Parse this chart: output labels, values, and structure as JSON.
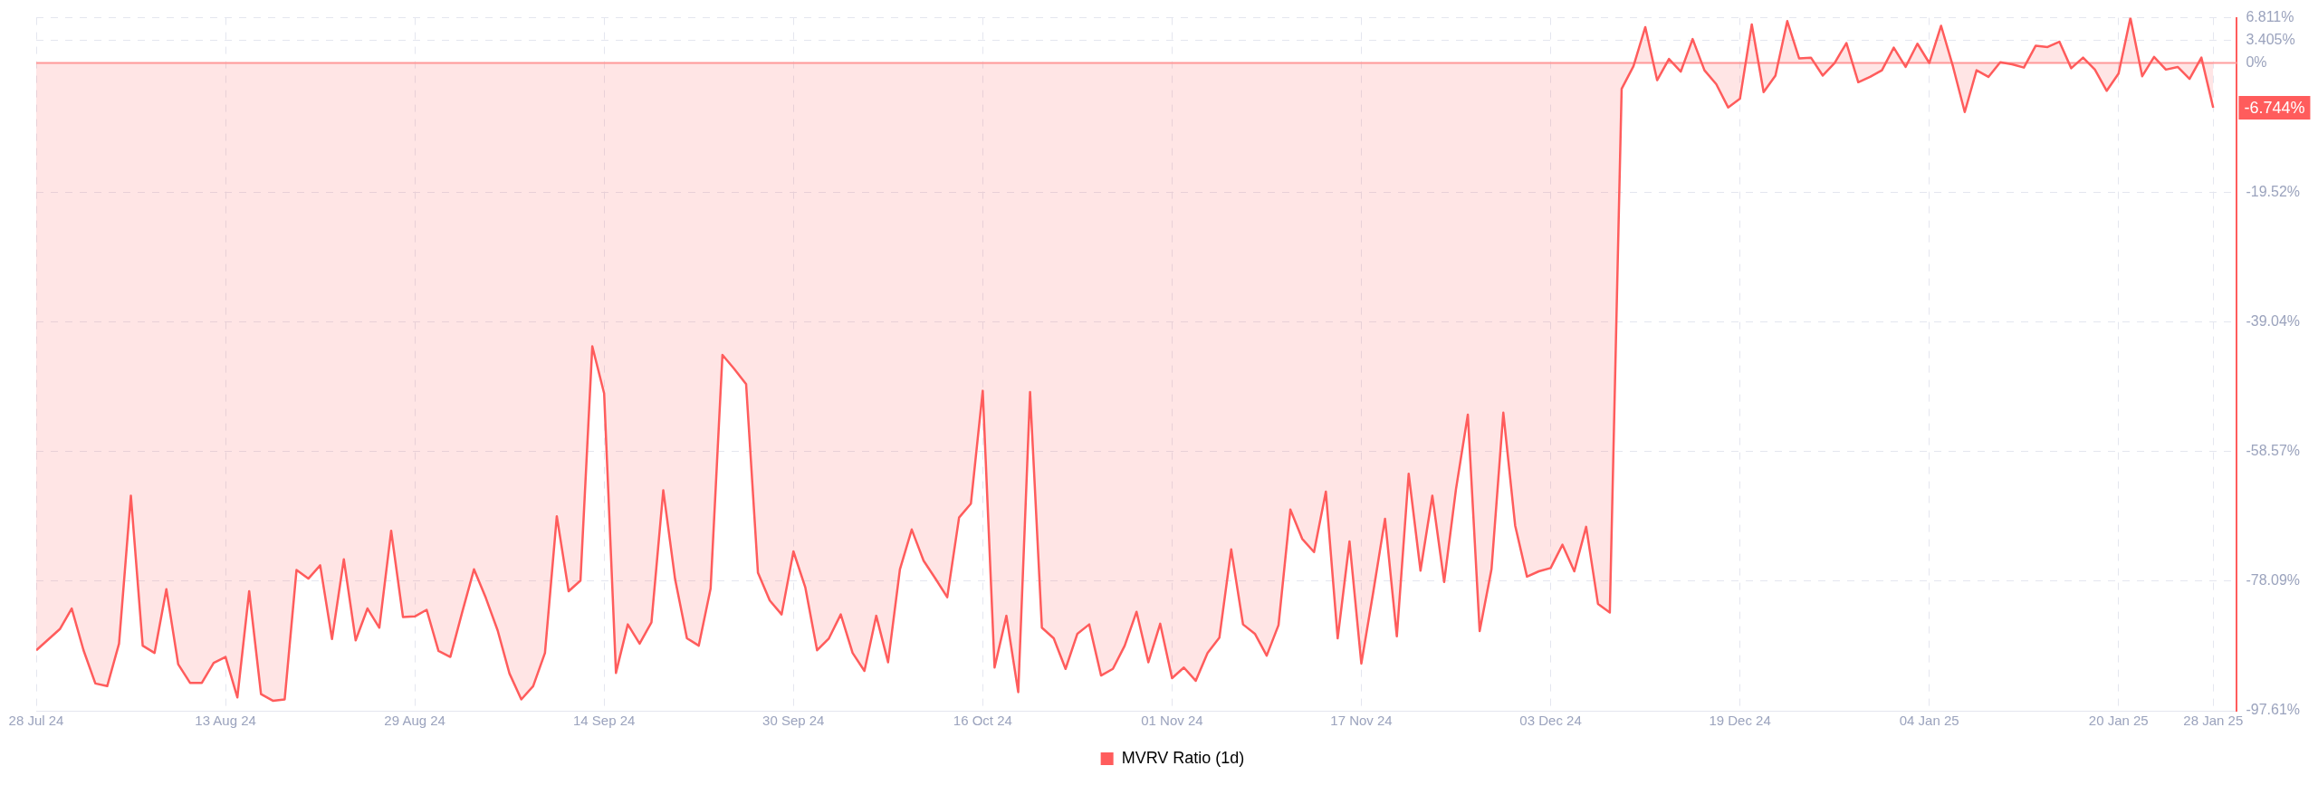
{
  "chart_data": {
    "type": "area",
    "legend": "bottom",
    "grid": true,
    "x": [
      "2024-07-28",
      "2024-07-29",
      "2024-07-30",
      "2024-07-31",
      "2024-08-01",
      "2024-08-02",
      "2024-08-03",
      "2024-08-04",
      "2024-08-05",
      "2024-08-06",
      "2024-08-07",
      "2024-08-08",
      "2024-08-09",
      "2024-08-10",
      "2024-08-11",
      "2024-08-12",
      "2024-08-13",
      "2024-08-14",
      "2024-08-15",
      "2024-08-16",
      "2024-08-17",
      "2024-08-18",
      "2024-08-19",
      "2024-08-20",
      "2024-08-21",
      "2024-08-22",
      "2024-08-23",
      "2024-08-24",
      "2024-08-25",
      "2024-08-26",
      "2024-08-27",
      "2024-08-28",
      "2024-08-29",
      "2024-08-30",
      "2024-08-31",
      "2024-09-01",
      "2024-09-02",
      "2024-09-03",
      "2024-09-04",
      "2024-09-05",
      "2024-09-06",
      "2024-09-07",
      "2024-09-08",
      "2024-09-09",
      "2024-09-10",
      "2024-09-11",
      "2024-09-12",
      "2024-09-13",
      "2024-09-14",
      "2024-09-15",
      "2024-09-16",
      "2024-09-17",
      "2024-09-18",
      "2024-09-19",
      "2024-09-20",
      "2024-09-21",
      "2024-09-22",
      "2024-09-23",
      "2024-09-24",
      "2024-09-25",
      "2024-09-26",
      "2024-09-27",
      "2024-09-28",
      "2024-09-29",
      "2024-09-30",
      "2024-10-01",
      "2024-10-02",
      "2024-10-03",
      "2024-10-04",
      "2024-10-05",
      "2024-10-06",
      "2024-10-07",
      "2024-10-08",
      "2024-10-09",
      "2024-10-10",
      "2024-10-11",
      "2024-10-12",
      "2024-10-13",
      "2024-10-14",
      "2024-10-15",
      "2024-10-16",
      "2024-10-17",
      "2024-10-18",
      "2024-10-19",
      "2024-10-20",
      "2024-10-21",
      "2024-10-22",
      "2024-10-23",
      "2024-10-24",
      "2024-10-25",
      "2024-10-26",
      "2024-10-27",
      "2024-10-28",
      "2024-10-29",
      "2024-10-30",
      "2024-10-31",
      "2024-11-01",
      "2024-11-02",
      "2024-11-03",
      "2024-11-04",
      "2024-11-05",
      "2024-11-06",
      "2024-11-07",
      "2024-11-08",
      "2024-11-09",
      "2024-11-10",
      "2024-11-11",
      "2024-11-12",
      "2024-11-13",
      "2024-11-14",
      "2024-11-15",
      "2024-11-16",
      "2024-11-17",
      "2024-11-18",
      "2024-11-19",
      "2024-11-20",
      "2024-11-21",
      "2024-11-22",
      "2024-11-23",
      "2024-11-24",
      "2024-11-25",
      "2024-11-26",
      "2024-11-27",
      "2024-11-28",
      "2024-11-29",
      "2024-11-30",
      "2024-12-01",
      "2024-12-02",
      "2024-12-03",
      "2024-12-04",
      "2024-12-05",
      "2024-12-06",
      "2024-12-07",
      "2024-12-08",
      "2024-12-09",
      "2024-12-10",
      "2024-12-11",
      "2024-12-12",
      "2024-12-13",
      "2024-12-14",
      "2024-12-15",
      "2024-12-16",
      "2024-12-17",
      "2024-12-18",
      "2024-12-19",
      "2024-12-20",
      "2024-12-21",
      "2024-12-22",
      "2024-12-23",
      "2024-12-24",
      "2024-12-25",
      "2024-12-26",
      "2024-12-27",
      "2024-12-28",
      "2024-12-29",
      "2024-12-30",
      "2024-12-31",
      "2025-01-01",
      "2025-01-02",
      "2025-01-03",
      "2025-01-04",
      "2025-01-05",
      "2025-01-06",
      "2025-01-07",
      "2025-01-08",
      "2025-01-09",
      "2025-01-10",
      "2025-01-11",
      "2025-01-12",
      "2025-01-13",
      "2025-01-14",
      "2025-01-15",
      "2025-01-16",
      "2025-01-17",
      "2025-01-18",
      "2025-01-19",
      "2025-01-20",
      "2025-01-21",
      "2025-01-22",
      "2025-01-23",
      "2025-01-24",
      "2025-01-25",
      "2025-01-26",
      "2025-01-27",
      "2025-01-28"
    ],
    "series": [
      {
        "name": "MVRV Ratio (1d)",
        "color": "#ff5c5c",
        "values": [
          -88.5,
          -86.9,
          -85.3,
          -82.2,
          -88.5,
          -93.5,
          -93.9,
          -87.5,
          -65.2,
          -87.8,
          -88.9,
          -79.3,
          -90.6,
          -93.4,
          -93.4,
          -90.4,
          -89.5,
          -95.6,
          -79.6,
          -95.1,
          -96.1,
          -95.9,
          -76.4,
          -77.7,
          -75.7,
          -86.8,
          -74.8,
          -87.0,
          -82.2,
          -85.1,
          -70.5,
          -83.5,
          -83.4,
          -82.4,
          -88.6,
          -89.5,
          -82.8,
          -76.3,
          -80.6,
          -85.5,
          -92.0,
          -95.9,
          -93.9,
          -88.9,
          -68.3,
          -79.6,
          -78.0,
          -42.7,
          -49.8,
          -91.9,
          -84.6,
          -87.5,
          -84.3,
          -64.4,
          -77.8,
          -86.7,
          -87.8,
          -79.2,
          -44.0,
          -46.1,
          -48.4,
          -76.8,
          -81.0,
          -83.1,
          -73.6,
          -79.0,
          -88.5,
          -86.7,
          -83.1,
          -88.9,
          -91.6,
          -83.3,
          -90.3,
          -76.3,
          -70.3,
          -75.0,
          -77.7,
          -80.5,
          -68.5,
          -66.4,
          -49.4,
          -91.1,
          -83.3,
          -94.8,
          -49.6,
          -85.1,
          -86.7,
          -91.3,
          -86.0,
          -84.6,
          -92.3,
          -91.3,
          -87.8,
          -82.7,
          -90.3,
          -84.5,
          -92.7,
          -91.1,
          -93.1,
          -88.9,
          -86.6,
          -73.3,
          -84.6,
          -86.0,
          -89.3,
          -84.7,
          -67.3,
          -71.7,
          -73.7,
          -64.6,
          -86.7,
          -72.1,
          -90.5,
          -79.8,
          -68.7,
          -86.4,
          -61.9,
          -76.5,
          -65.2,
          -78.2,
          -64.2,
          -53.0,
          -85.6,
          -76.3,
          -52.7,
          -69.7,
          -77.4,
          -76.6,
          -76.1,
          -72.6,
          -76.6,
          -69.9,
          -81.5,
          -82.8,
          -3.9,
          -0.5,
          5.4,
          -2.6,
          0.6,
          -1.3,
          3.6,
          -1.1,
          -3.2,
          -6.7,
          -5.4,
          5.8,
          -4.4,
          -1.9,
          6.3,
          0.7,
          0.8,
          -1.9,
          0.0,
          3.0,
          -2.9,
          -2.1,
          -1.1,
          2.3,
          -0.6,
          2.9,
          0.0,
          5.6,
          -0.5,
          -7.4,
          -1.1,
          -2.1,
          0.1,
          -0.2,
          -0.7,
          2.6,
          2.4,
          3.2,
          -0.8,
          0.8,
          -1.0,
          -4.2,
          -1.6,
          6.8,
          -2.0,
          0.9,
          -1.0,
          -0.6,
          -2.4,
          0.8,
          -6.744
        ]
      }
    ],
    "xlim": [
      "2024-07-28",
      "2025-01-30"
    ],
    "xticks": [
      {
        "value": "2024-07-28",
        "label": "28 Jul 24"
      },
      {
        "value": "2024-08-13",
        "label": "13 Aug 24"
      },
      {
        "value": "2024-08-29",
        "label": "29 Aug 24"
      },
      {
        "value": "2024-09-14",
        "label": "14 Sep 24"
      },
      {
        "value": "2024-09-30",
        "label": "30 Sep 24"
      },
      {
        "value": "2024-10-16",
        "label": "16 Oct 24"
      },
      {
        "value": "2024-11-01",
        "label": "01 Nov 24"
      },
      {
        "value": "2024-11-17",
        "label": "17 Nov 24"
      },
      {
        "value": "2024-12-03",
        "label": "03 Dec 24"
      },
      {
        "value": "2024-12-19",
        "label": "19 Dec 24"
      },
      {
        "value": "2025-01-04",
        "label": "04 Jan 25"
      },
      {
        "value": "2025-01-20",
        "label": "20 Jan 25"
      },
      {
        "value": "2025-01-28",
        "label": "28 Jan 25"
      }
    ],
    "ylim": [
      -97.61,
      6.811
    ],
    "yticks": [
      {
        "value": 6.811,
        "label": "6.811%"
      },
      {
        "value": 3.405,
        "label": "3.405%"
      },
      {
        "value": 0,
        "label": "0%"
      },
      {
        "value": -19.52,
        "label": "-19.52%"
      },
      {
        "value": -39.04,
        "label": "-39.04%"
      },
      {
        "value": -58.57,
        "label": "-58.57%"
      },
      {
        "value": -78.09,
        "label": "-78.09%"
      },
      {
        "value": -97.61,
        "label": "-97.61%"
      }
    ],
    "ref_lines": [
      {
        "axis": "y",
        "value": 0,
        "color": "#ff9e9e"
      }
    ],
    "annotations": [
      {
        "text": "-6.744%",
        "x": "2025-01-28",
        "y": -6.744
      }
    ]
  }
}
